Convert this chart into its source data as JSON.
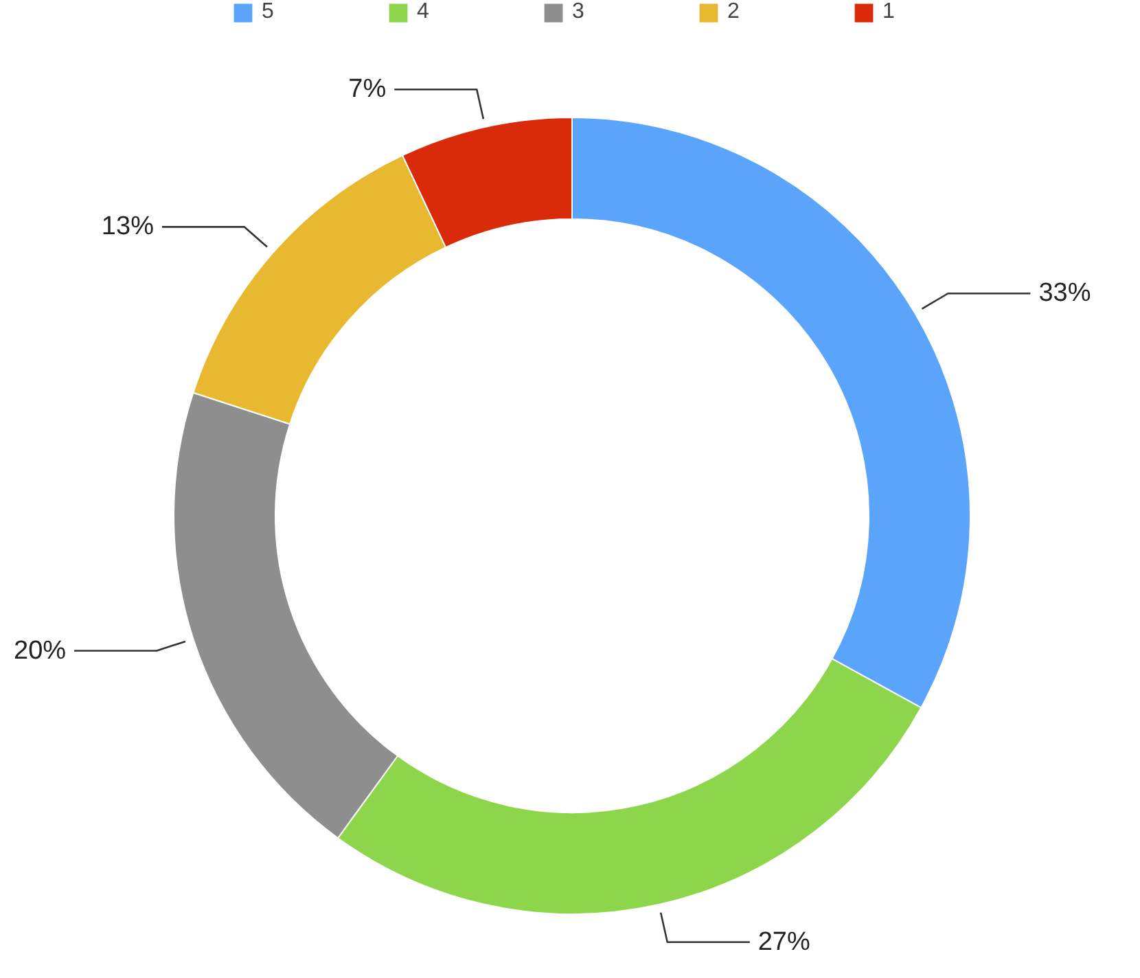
{
  "chart_data": {
    "type": "donut",
    "categories": [
      "5",
      "4",
      "3",
      "2",
      "1"
    ],
    "values": [
      33,
      27,
      20,
      13,
      7
    ],
    "colors": [
      "#5aa5fb",
      "#8dd64c",
      "#8e8e8e",
      "#e8b830",
      "#d92b0a"
    ],
    "value_labels": [
      "33%",
      "27%",
      "20%",
      "13%",
      "7%"
    ],
    "legend": "top"
  }
}
